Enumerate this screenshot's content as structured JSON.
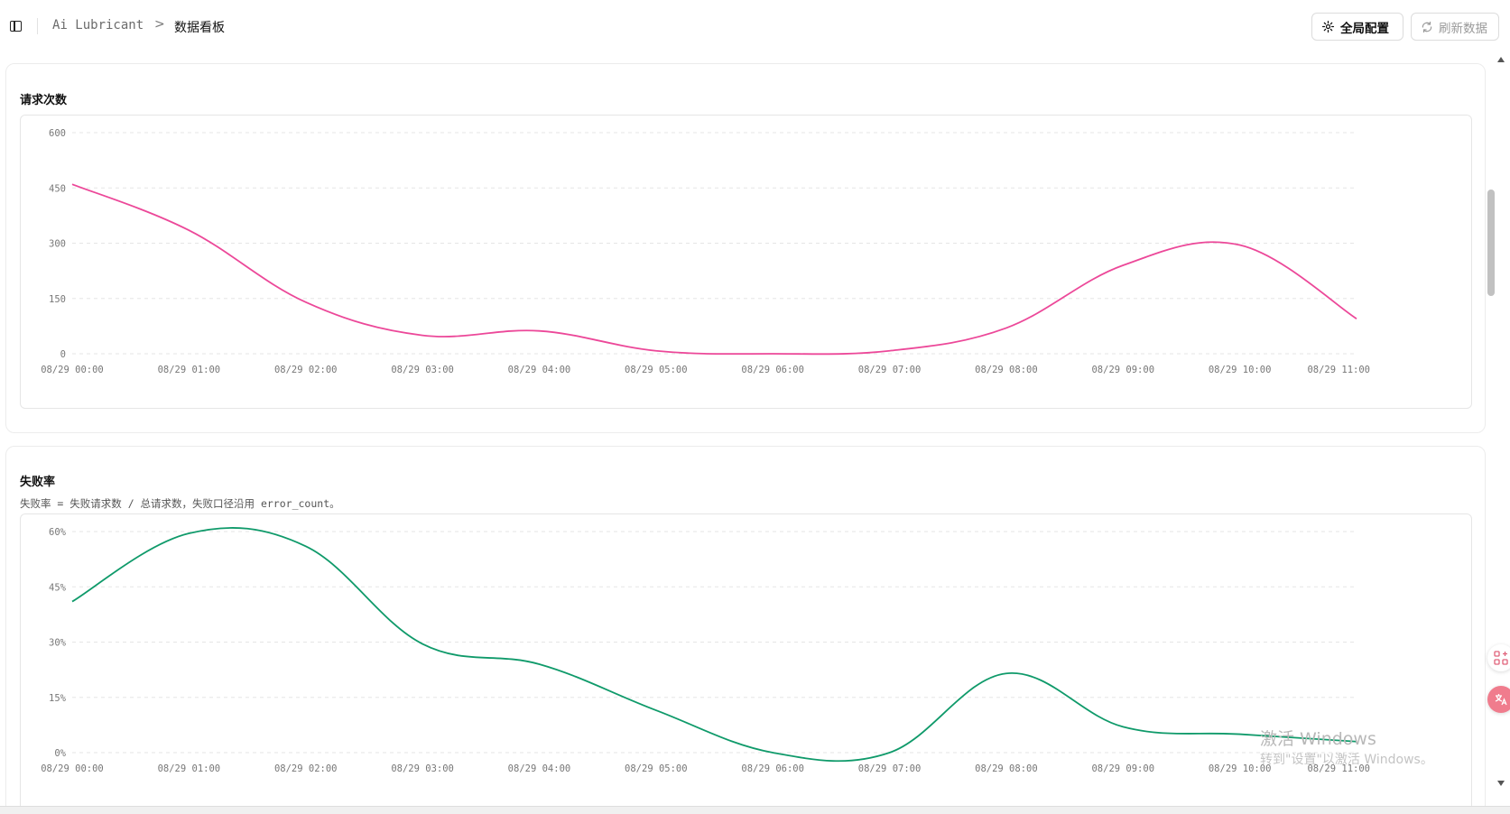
{
  "header": {
    "app_name": "Ai Lubricant",
    "separator": ">",
    "page_title": "数据看板",
    "config_label": "全局配置",
    "refresh_label": "刷新数据"
  },
  "colors": {
    "requests_line": "#ec4899",
    "failure_line": "#0f9a6a",
    "grid": "#e5e5e5"
  },
  "cards": {
    "requests": {
      "title": "请求次数"
    },
    "failure": {
      "title": "失败率",
      "description": "失败率 = 失败请求数 / 总请求数，失败口径沿用 error_count。"
    }
  },
  "watermark": {
    "line1": "激活 Windows",
    "line2": "转到\"设置\"以激活 Windows。"
  },
  "chart_data": [
    {
      "type": "line",
      "title": "请求次数",
      "x": [
        "08/29 00:00",
        "08/29 01:00",
        "08/29 02:00",
        "08/29 03:00",
        "08/29 04:00",
        "08/29 05:00",
        "08/29 06:00",
        "08/29 07:00",
        "08/29 08:00",
        "08/29 09:00",
        "08/29 10:00",
        "08/29 11:00"
      ],
      "yticks": [
        "600",
        "450",
        "300",
        "150",
        "0"
      ],
      "ylim": [
        0,
        600
      ],
      "grid": true,
      "series": [
        {
          "values": [
            460,
            335,
            140,
            50,
            62,
            8,
            0,
            8,
            70,
            240,
            295,
            95
          ]
        }
      ]
    },
    {
      "type": "line",
      "title": "失败率",
      "x": [
        "08/29 00:00",
        "08/29 01:00",
        "08/29 02:00",
        "08/29 03:00",
        "08/29 04:00",
        "08/29 05:00",
        "08/29 06:00",
        "08/29 07:00",
        "08/29 08:00",
        "08/29 09:00",
        "08/29 10:00",
        "08/29 11:00"
      ],
      "yticks": [
        "60%",
        "45%",
        "30%",
        "15%",
        "0%"
      ],
      "ylim": [
        0,
        60
      ],
      "grid": true,
      "series": [
        {
          "values": [
            41,
            59.5,
            56,
            29.5,
            24,
            11.5,
            0,
            0,
            21.5,
            7,
            5,
            3
          ]
        }
      ]
    }
  ]
}
